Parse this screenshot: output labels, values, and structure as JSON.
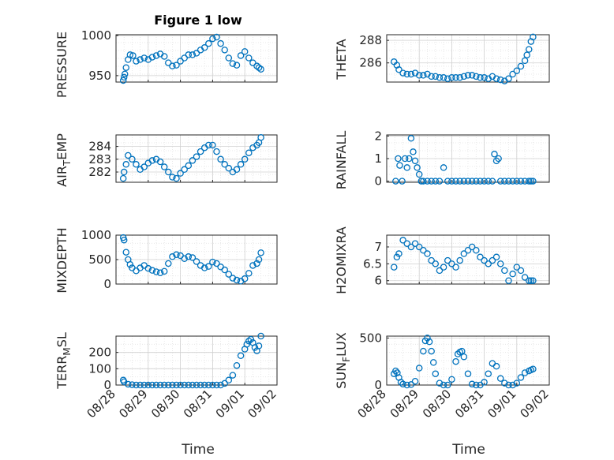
{
  "chart_data": [
    {
      "type": "scatter",
      "id": "pressure",
      "title": "Figure 1 low",
      "ylabel": "PRESSURE",
      "ylim": [
        942,
        1001
      ],
      "xlim": [
        0,
        4.0
      ],
      "yticks": [
        950,
        1000
      ],
      "ytick_labels": [
        "950",
        "1000"
      ],
      "x": [
        0.18,
        0.2,
        0.22,
        0.25,
        0.3,
        0.35,
        0.42,
        0.5,
        0.6,
        0.7,
        0.8,
        0.9,
        1.0,
        1.1,
        1.2,
        1.3,
        1.4,
        1.5,
        1.6,
        1.7,
        1.8,
        1.9,
        2.0,
        2.1,
        2.2,
        2.3,
        2.4,
        2.5,
        2.6,
        2.7,
        2.8,
        2.9,
        3.0,
        3.1,
        3.2,
        3.3,
        3.4,
        3.5,
        3.55,
        3.6
      ],
      "y": [
        944,
        948,
        952,
        960,
        970,
        976,
        975,
        968,
        970,
        972,
        970,
        973,
        975,
        977,
        974,
        966,
        962,
        963,
        968,
        972,
        976,
        976,
        978,
        982,
        985,
        990,
        996,
        998,
        990,
        982,
        972,
        965,
        963,
        975,
        980,
        972,
        966,
        962,
        960,
        958
      ]
    },
    {
      "type": "scatter",
      "id": "theta",
      "title": "",
      "ylabel": "THETA",
      "ylim": [
        284.3,
        288.5
      ],
      "xlim": [
        0,
        4.0
      ],
      "yticks": [
        286,
        288
      ],
      "ytick_labels": [
        "286",
        "288"
      ],
      "x": [
        0.18,
        0.25,
        0.3,
        0.4,
        0.5,
        0.6,
        0.7,
        0.8,
        0.9,
        1.0,
        1.1,
        1.2,
        1.3,
        1.4,
        1.5,
        1.6,
        1.7,
        1.8,
        1.9,
        2.0,
        2.1,
        2.2,
        2.3,
        2.4,
        2.5,
        2.6,
        2.7,
        2.8,
        2.9,
        3.0,
        3.1,
        3.2,
        3.3,
        3.4,
        3.45,
        3.5,
        3.55,
        3.6
      ],
      "y": [
        286.1,
        285.8,
        285.4,
        285.1,
        285.0,
        285.0,
        285.1,
        284.9,
        284.9,
        285.0,
        284.8,
        284.8,
        284.7,
        284.7,
        284.6,
        284.7,
        284.7,
        284.7,
        284.8,
        284.9,
        284.9,
        284.8,
        284.7,
        284.7,
        284.6,
        284.8,
        284.6,
        284.5,
        284.4,
        284.6,
        285.0,
        285.3,
        285.7,
        286.2,
        286.7,
        287.2,
        287.9,
        288.3
      ]
    },
    {
      "type": "scatter",
      "id": "air_temp",
      "title": "",
      "ylabel_main": "AIR",
      "ylabel_sub": "T",
      "ylabel_rest": "EMP",
      "ylim": [
        281.2,
        284.9
      ],
      "xlim": [
        0,
        4.0
      ],
      "yticks": [
        282,
        283,
        284
      ],
      "ytick_labels": [
        "282",
        "283",
        "284"
      ],
      "x": [
        0.18,
        0.2,
        0.25,
        0.3,
        0.4,
        0.5,
        0.6,
        0.7,
        0.8,
        0.9,
        1.0,
        1.1,
        1.2,
        1.3,
        1.4,
        1.5,
        1.6,
        1.7,
        1.8,
        1.9,
        2.0,
        2.1,
        2.2,
        2.3,
        2.4,
        2.5,
        2.6,
        2.7,
        2.8,
        2.9,
        3.0,
        3.1,
        3.2,
        3.3,
        3.4,
        3.5,
        3.55,
        3.6
      ],
      "y": [
        281.5,
        282.0,
        282.6,
        283.3,
        283.0,
        282.6,
        282.2,
        282.4,
        282.7,
        282.9,
        283.0,
        282.8,
        282.4,
        282.0,
        281.6,
        281.5,
        281.9,
        282.2,
        282.5,
        282.9,
        283.2,
        283.6,
        283.9,
        284.1,
        284.1,
        283.6,
        283.0,
        282.6,
        282.3,
        282.0,
        282.2,
        282.6,
        283.0,
        283.5,
        283.9,
        284.1,
        284.3,
        284.7
      ]
    },
    {
      "type": "scatter",
      "id": "rainfall",
      "title": "",
      "ylabel": "RAINFALL",
      "ylim": [
        -0.05,
        2.05
      ],
      "xlim": [
        0,
        4.0
      ],
      "yticks": [
        0,
        1,
        2
      ],
      "ytick_labels": [
        "0",
        "1",
        "2"
      ],
      "x": [
        0.22,
        0.28,
        0.32,
        0.38,
        0.45,
        0.5,
        0.55,
        0.6,
        0.65,
        0.7,
        0.75,
        0.8,
        0.85,
        0.9,
        1.0,
        1.1,
        1.2,
        1.3,
        1.4,
        1.5,
        1.6,
        1.7,
        1.8,
        1.9,
        2.0,
        2.1,
        2.2,
        2.3,
        2.4,
        2.5,
        2.6,
        2.65,
        2.7,
        2.75,
        2.8,
        2.9,
        3.0,
        3.1,
        3.2,
        3.3,
        3.4,
        3.5,
        3.55,
        3.6
      ],
      "y": [
        0.0,
        1.0,
        0.7,
        0.0,
        1.0,
        0.6,
        1.0,
        1.9,
        1.3,
        0.9,
        0.6,
        0.3,
        0.0,
        0.0,
        0.0,
        0.0,
        0.0,
        0.0,
        0.6,
        0.0,
        0.0,
        0.0,
        0.0,
        0.0,
        0.0,
        0.0,
        0.0,
        0.0,
        0.0,
        0.0,
        0.0,
        1.2,
        0.9,
        1.0,
        0.0,
        0.0,
        0.0,
        0.0,
        0.0,
        0.0,
        0.0,
        0.0,
        0.0,
        0.0
      ]
    },
    {
      "type": "scatter",
      "id": "mixdepth",
      "title": "",
      "ylabel": "MIXDEPTH",
      "ylim": [
        0,
        1000
      ],
      "xlim": [
        0,
        4.0
      ],
      "yticks": [
        0,
        500,
        1000
      ],
      "ytick_labels": [
        "0",
        "500",
        "1000"
      ],
      "x": [
        0.18,
        0.2,
        0.25,
        0.3,
        0.35,
        0.4,
        0.5,
        0.6,
        0.7,
        0.8,
        0.9,
        1.0,
        1.1,
        1.2,
        1.3,
        1.4,
        1.5,
        1.6,
        1.7,
        1.8,
        1.9,
        2.0,
        2.1,
        2.2,
        2.3,
        2.4,
        2.5,
        2.6,
        2.7,
        2.8,
        2.9,
        3.0,
        3.1,
        3.2,
        3.3,
        3.4,
        3.5,
        3.55,
        3.6
      ],
      "y": [
        950,
        900,
        650,
        500,
        400,
        330,
        270,
        330,
        380,
        320,
        280,
        250,
        230,
        260,
        420,
        560,
        600,
        580,
        520,
        560,
        540,
        460,
        380,
        330,
        360,
        450,
        420,
        350,
        290,
        200,
        120,
        80,
        60,
        110,
        220,
        380,
        420,
        500,
        640
      ]
    },
    {
      "type": "scatter",
      "id": "h2omixra",
      "title": "",
      "ylabel": "H2OMIXRA",
      "ylim": [
        5.9,
        7.35
      ],
      "xlim": [
        0,
        4.0
      ],
      "yticks": [
        6,
        6.5,
        7
      ],
      "ytick_labels": [
        "6",
        "6.5",
        "7"
      ],
      "x": [
        0.18,
        0.25,
        0.3,
        0.4,
        0.5,
        0.6,
        0.7,
        0.8,
        0.9,
        1.0,
        1.1,
        1.2,
        1.3,
        1.4,
        1.5,
        1.6,
        1.7,
        1.8,
        1.9,
        2.0,
        2.1,
        2.2,
        2.3,
        2.4,
        2.5,
        2.6,
        2.7,
        2.8,
        2.9,
        3.0,
        3.1,
        3.2,
        3.3,
        3.4,
        3.5,
        3.55,
        3.6
      ],
      "y": [
        6.4,
        6.7,
        6.8,
        7.2,
        7.1,
        7.0,
        7.1,
        7.0,
        6.9,
        6.8,
        6.6,
        6.5,
        6.3,
        6.4,
        6.6,
        6.5,
        6.4,
        6.6,
        6.8,
        6.9,
        7.0,
        6.9,
        6.7,
        6.6,
        6.5,
        6.6,
        6.7,
        6.5,
        6.3,
        6.0,
        6.2,
        6.4,
        6.3,
        6.1,
        6.0,
        6.0,
        6.0
      ]
    },
    {
      "type": "scatter",
      "id": "terr_msl",
      "title": "",
      "ylabel_main": "TERR",
      "ylabel_sub": "M",
      "ylabel_rest": "SL",
      "ylim": [
        0,
        300
      ],
      "xlim": [
        0,
        4.0
      ],
      "yticks": [
        0,
        100,
        200
      ],
      "ytick_labels": [
        "0",
        "100",
        "200"
      ],
      "xticks": [
        0,
        0.8,
        1.6,
        2.4,
        3.2,
        4.0
      ],
      "xtick_labels": [
        "08/28",
        "08/29",
        "08/30",
        "08/31",
        "09/01",
        "09/02"
      ],
      "xlabel": "Time",
      "x": [
        0.18,
        0.2,
        0.3,
        0.4,
        0.5,
        0.6,
        0.7,
        0.8,
        0.9,
        1.0,
        1.1,
        1.2,
        1.3,
        1.4,
        1.5,
        1.6,
        1.7,
        1.8,
        1.9,
        2.0,
        2.1,
        2.2,
        2.3,
        2.4,
        2.5,
        2.6,
        2.7,
        2.8,
        2.9,
        3.0,
        3.1,
        3.2,
        3.25,
        3.3,
        3.35,
        3.4,
        3.45,
        3.5,
        3.55,
        3.6
      ],
      "y": [
        30,
        20,
        5,
        2,
        0,
        0,
        0,
        0,
        0,
        0,
        0,
        0,
        0,
        0,
        0,
        0,
        0,
        0,
        0,
        0,
        0,
        0,
        0,
        0,
        0,
        0,
        10,
        30,
        60,
        120,
        180,
        220,
        250,
        270,
        280,
        260,
        230,
        210,
        240,
        300
      ]
    },
    {
      "type": "scatter",
      "id": "sun_flux",
      "title": "",
      "ylabel_main": "SUN",
      "ylabel_sub": "F",
      "ylabel_rest": "LUX",
      "ylim": [
        0,
        520
      ],
      "xlim": [
        0,
        4.0
      ],
      "yticks": [
        0,
        500
      ],
      "ytick_labels": [
        "0",
        "500"
      ],
      "xticks": [
        0,
        0.8,
        1.6,
        2.4,
        3.2,
        4.0
      ],
      "xtick_labels": [
        "08/28",
        "08/29",
        "08/30",
        "08/31",
        "09/01",
        "09/02"
      ],
      "xlabel": "Time",
      "x": [
        0.18,
        0.22,
        0.26,
        0.3,
        0.35,
        0.4,
        0.5,
        0.6,
        0.7,
        0.8,
        0.9,
        0.95,
        1.0,
        1.05,
        1.1,
        1.15,
        1.2,
        1.3,
        1.4,
        1.5,
        1.6,
        1.7,
        1.75,
        1.8,
        1.85,
        1.9,
        2.0,
        2.1,
        2.2,
        2.3,
        2.4,
        2.5,
        2.6,
        2.7,
        2.8,
        2.9,
        3.0,
        3.1,
        3.2,
        3.3,
        3.4,
        3.5,
        3.55,
        3.6
      ],
      "y": [
        120,
        150,
        130,
        80,
        30,
        10,
        0,
        5,
        40,
        180,
        360,
        470,
        500,
        460,
        360,
        240,
        120,
        20,
        0,
        0,
        60,
        250,
        330,
        350,
        360,
        300,
        120,
        10,
        0,
        0,
        30,
        120,
        230,
        200,
        70,
        20,
        0,
        0,
        20,
        80,
        130,
        150,
        160,
        170
      ]
    }
  ]
}
